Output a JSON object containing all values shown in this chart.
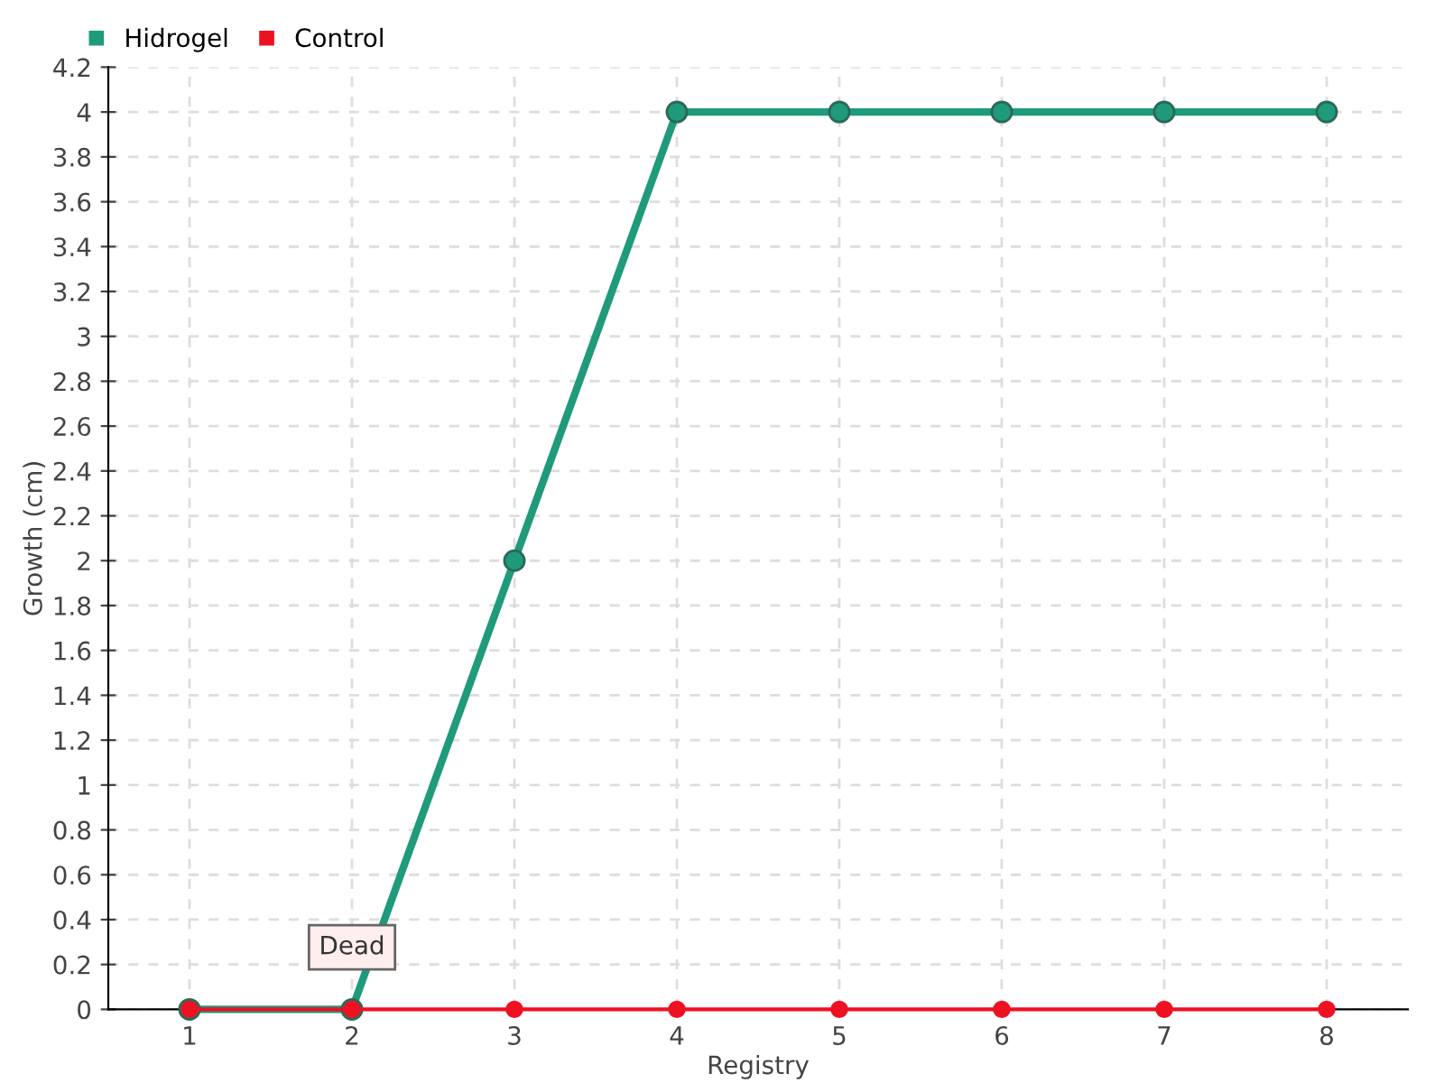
{
  "chart_data": {
    "type": "line",
    "xlabel": "Registry",
    "ylabel": "Growth (cm)",
    "x": [
      1,
      2,
      3,
      4,
      5,
      6,
      7,
      8
    ],
    "series": [
      {
        "name": "Hidrogel",
        "color": "#1f9a7b",
        "values": [
          0,
          0,
          2,
          4,
          4,
          4,
          4,
          4
        ]
      },
      {
        "name": "Control",
        "color": "#ee1122",
        "values": [
          0,
          0,
          0,
          0,
          0,
          0,
          0,
          0
        ]
      }
    ],
    "xlim": [
      0.5,
      8.5
    ],
    "xticks": [
      1,
      2,
      3,
      4,
      5,
      6,
      7,
      8
    ],
    "ylim": [
      0,
      4.2
    ],
    "yticks": [
      0,
      0.2,
      0.4,
      0.6,
      0.8,
      1,
      1.2,
      1.4,
      1.6,
      1.8,
      2,
      2.2,
      2.4,
      2.6,
      2.8,
      3,
      3.2,
      3.4,
      3.6,
      3.8,
      4,
      4.2
    ],
    "annotations": [
      {
        "text": "Dead",
        "x": 2,
        "y": 0
      }
    ],
    "grid": true,
    "legend": "top left",
    "marker": "circle",
    "line_style": "solid"
  }
}
